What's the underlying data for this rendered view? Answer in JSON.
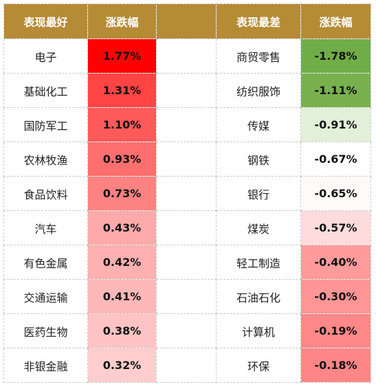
{
  "header": {
    "best_label": "表现最好",
    "best_change_label": "涨跌幅",
    "worst_label": "表现最差",
    "worst_change_label": "涨跌幅"
  },
  "chart_data": {
    "type": "table",
    "columns": [
      "表现最好",
      "涨跌幅",
      "表现最差",
      "涨跌幅"
    ],
    "best": [
      {
        "name": "电子",
        "change": "1.77%",
        "value": 1.77,
        "color": "#ff0000"
      },
      {
        "name": "基础化工",
        "change": "1.31%",
        "value": 1.31,
        "color": "#ff4444"
      },
      {
        "name": "国防军工",
        "change": "1.10%",
        "value": 1.1,
        "color": "#ff5a5a"
      },
      {
        "name": "农林牧渔",
        "change": "0.93%",
        "value": 0.93,
        "color": "#ff6f6f"
      },
      {
        "name": "食品饮料",
        "change": "0.73%",
        "value": 0.73,
        "color": "#ff8282"
      },
      {
        "name": "汽车",
        "change": "0.43%",
        "value": 0.43,
        "color": "#ffaaaa"
      },
      {
        "name": "有色金属",
        "change": "0.42%",
        "value": 0.42,
        "color": "#ffb0b0"
      },
      {
        "name": "交通运输",
        "change": "0.41%",
        "value": 0.41,
        "color": "#ffb8b8"
      },
      {
        "name": "医药生物",
        "change": "0.38%",
        "value": 0.38,
        "color": "#ffc3c3"
      },
      {
        "name": "非银金融",
        "change": "0.32%",
        "value": 0.32,
        "color": "#ffcdcd"
      }
    ],
    "worst": [
      {
        "name": "商贸零售",
        "change": "-1.78%",
        "value": -1.78,
        "color": "#70ad47"
      },
      {
        "name": "纺织服饰",
        "change": "-1.11%",
        "value": -1.11,
        "color": "#78b04e"
      },
      {
        "name": "传媒",
        "change": "-0.91%",
        "value": -0.91,
        "color": "#e2efd9"
      },
      {
        "name": "钢铁",
        "change": "-0.67%",
        "value": -0.67,
        "color": "#ffffff"
      },
      {
        "name": "银行",
        "change": "-0.65%",
        "value": -0.65,
        "color": "#fffafa"
      },
      {
        "name": "煤炭",
        "change": "-0.57%",
        "value": -0.57,
        "color": "#ffdcdc"
      },
      {
        "name": "轻工制造",
        "change": "-0.40%",
        "value": -0.4,
        "color": "#ff9b9b"
      },
      {
        "name": "石油石化",
        "change": "-0.30%",
        "value": -0.3,
        "color": "#ff9595"
      },
      {
        "name": "计算机",
        "change": "-0.19%",
        "value": -0.19,
        "color": "#ff8888"
      },
      {
        "name": "环保",
        "change": "-0.18%",
        "value": -0.18,
        "color": "#ff8686"
      }
    ]
  }
}
